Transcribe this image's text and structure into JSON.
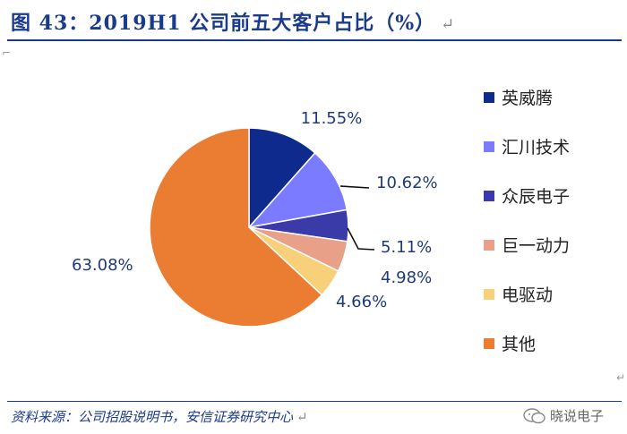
{
  "title": "图 43：2019H1 公司前五大客户占比（%）",
  "source": "资料来源：公司招股说明书，安信证券研究中心",
  "watermark": "晓说电子",
  "return_mark": "↵",
  "chart_data": {
    "type": "pie",
    "title": "",
    "categories": [
      "英威腾",
      "汇川技术",
      "众辰电子",
      "巨一动力",
      "电驱动",
      "其他"
    ],
    "values": [
      11.55,
      10.62,
      5.11,
      4.98,
      4.66,
      63.08
    ],
    "labels": [
      "11.55%",
      "10.62%",
      "5.11%",
      "4.98%",
      "4.66%",
      "63.08%"
    ],
    "colors": [
      "#0d2a8c",
      "#7b7bff",
      "#3a3aa8",
      "#e8a088",
      "#f9d07a",
      "#ea7d31"
    ],
    "legend": "right"
  }
}
